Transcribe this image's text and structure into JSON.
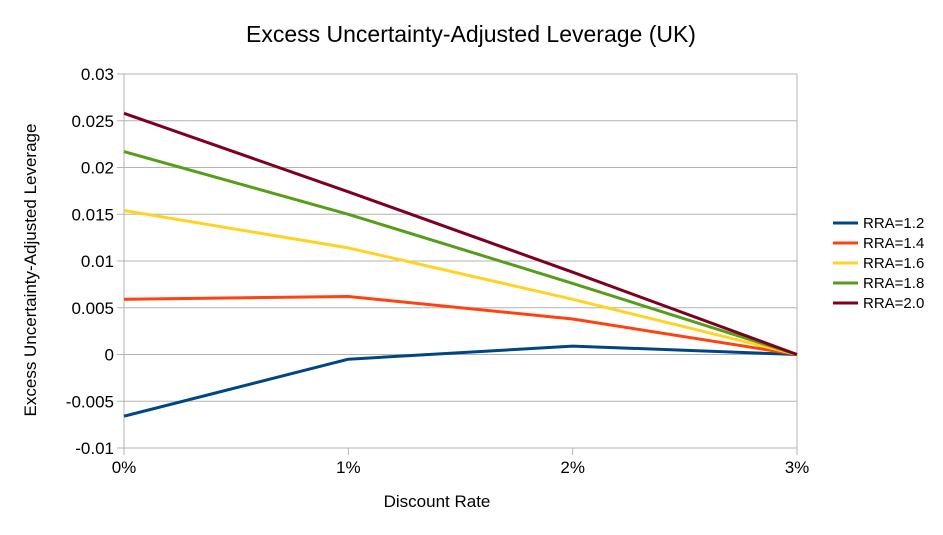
{
  "chart_data": {
    "type": "line",
    "title": "Excess Uncertainty-Adjusted Leverage (UK)",
    "xlabel": "Discount Rate",
    "ylabel": "Excess Uncertainty-Adjusted Leverage",
    "categories": [
      "0%",
      "1%",
      "2%",
      "3%"
    ],
    "ylim": [
      -0.01,
      0.03
    ],
    "yticks": [
      -0.01,
      -0.005,
      0,
      0.005,
      0.01,
      0.015,
      0.02,
      0.025,
      0.03
    ],
    "ytick_labels": [
      "-0.01",
      "-0.005",
      "0",
      "0.005",
      "0.01",
      "0.015",
      "0.02",
      "0.025",
      "0.03"
    ],
    "grid": "horizontal",
    "legend_position": "right",
    "series": [
      {
        "name": "RRA=1.2",
        "color": "#004586",
        "values": [
          -0.0066,
          -0.0005,
          0.0009,
          0.0
        ]
      },
      {
        "name": "RRA=1.4",
        "color": "#ff420e",
        "values": [
          0.0059,
          0.0062,
          0.0038,
          0.0
        ]
      },
      {
        "name": "RRA=1.6",
        "color": "#ffd320",
        "values": [
          0.0154,
          0.0114,
          0.0059,
          0.0
        ]
      },
      {
        "name": "RRA=1.8",
        "color": "#579d1c",
        "values": [
          0.0217,
          0.015,
          0.0076,
          0.0
        ]
      },
      {
        "name": "RRA=2.0",
        "color": "#7e0021",
        "values": [
          0.0258,
          0.0174,
          0.0088,
          0.0
        ]
      }
    ]
  }
}
